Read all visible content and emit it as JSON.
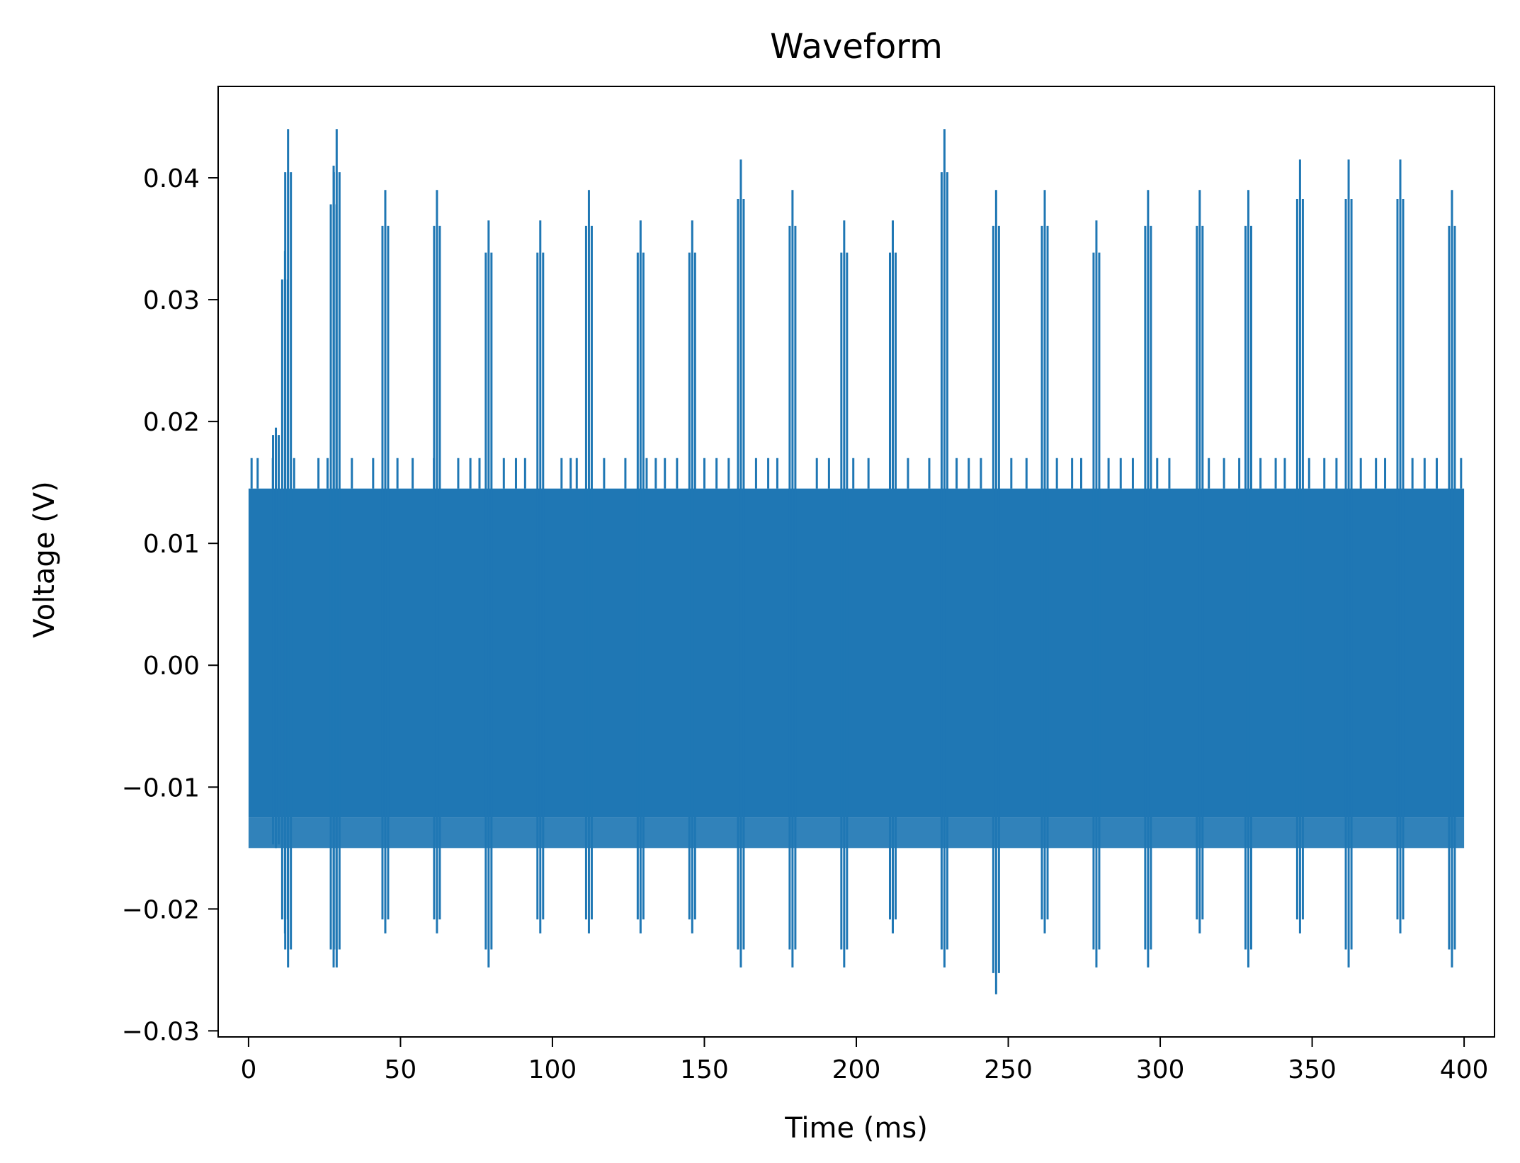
{
  "chart_data": {
    "type": "line",
    "title": "Waveform",
    "xlabel": "Time (ms)",
    "ylabel": "Voltage (V)",
    "xlim": [
      -10,
      410
    ],
    "ylim": [
      -0.0305,
      0.0475
    ],
    "x_ticks": [
      0,
      50,
      100,
      150,
      200,
      250,
      300,
      350,
      400
    ],
    "x_tick_labels": [
      "0",
      "50",
      "100",
      "150",
      "200",
      "250",
      "300",
      "350",
      "400"
    ],
    "y_ticks": [
      -0.03,
      -0.02,
      -0.01,
      0.0,
      0.01,
      0.02,
      0.03,
      0.04
    ],
    "y_tick_labels": [
      "−0.03",
      "−0.02",
      "−0.01",
      "0.00",
      "0.01",
      "0.02",
      "0.03",
      "0.04"
    ],
    "grid": false,
    "legend": "none",
    "series": [
      {
        "color": "#1f77b4",
        "baseline_envelope": {
          "x_range": [
            0,
            400
          ],
          "y_min": -0.0125,
          "y_max": 0.0145
        },
        "secondary_envelope": {
          "y_min": -0.015,
          "y_max": 0.017
        },
        "spikes": [
          {
            "x": 9,
            "y_max": 0.0195,
            "y_min": -0.015
          },
          {
            "x": 12,
            "y_max": 0.034,
            "y_min": -0.022
          },
          {
            "x": 13,
            "y_max": 0.044,
            "y_min": -0.0248
          },
          {
            "x": 28,
            "y_max": 0.041,
            "y_min": -0.0248
          },
          {
            "x": 29,
            "y_max": 0.044,
            "y_min": -0.0248
          },
          {
            "x": 45,
            "y_max": 0.039,
            "y_min": -0.022
          },
          {
            "x": 62,
            "y_max": 0.039,
            "y_min": -0.022
          },
          {
            "x": 79,
            "y_max": 0.0365,
            "y_min": -0.0248
          },
          {
            "x": 96,
            "y_max": 0.0365,
            "y_min": -0.022
          },
          {
            "x": 112,
            "y_max": 0.039,
            "y_min": -0.022
          },
          {
            "x": 129,
            "y_max": 0.0365,
            "y_min": -0.022
          },
          {
            "x": 146,
            "y_max": 0.0365,
            "y_min": -0.022
          },
          {
            "x": 162,
            "y_max": 0.0415,
            "y_min": -0.0248
          },
          {
            "x": 179,
            "y_max": 0.039,
            "y_min": -0.0248
          },
          {
            "x": 196,
            "y_max": 0.0365,
            "y_min": -0.0248
          },
          {
            "x": 212,
            "y_max": 0.0365,
            "y_min": -0.022
          },
          {
            "x": 229,
            "y_max": 0.044,
            "y_min": -0.0248
          },
          {
            "x": 246,
            "y_max": 0.039,
            "y_min": -0.027
          },
          {
            "x": 262,
            "y_max": 0.039,
            "y_min": -0.022
          },
          {
            "x": 279,
            "y_max": 0.0365,
            "y_min": -0.0248
          },
          {
            "x": 296,
            "y_max": 0.039,
            "y_min": -0.0248
          },
          {
            "x": 313,
            "y_max": 0.039,
            "y_min": -0.022
          },
          {
            "x": 329,
            "y_max": 0.039,
            "y_min": -0.0248
          },
          {
            "x": 346,
            "y_max": 0.0415,
            "y_min": -0.022
          },
          {
            "x": 362,
            "y_max": 0.0415,
            "y_min": -0.0248
          },
          {
            "x": 379,
            "y_max": 0.0415,
            "y_min": -0.022
          },
          {
            "x": 396,
            "y_max": 0.039,
            "y_min": -0.0248
          }
        ],
        "secondary_spike_x": [
          1,
          3,
          8,
          15,
          23,
          26,
          34,
          41,
          49,
          54,
          61,
          69,
          73,
          76,
          84,
          88,
          91,
          103,
          106,
          108,
          117,
          124,
          131,
          134,
          137,
          141,
          150,
          154,
          158,
          167,
          171,
          174,
          187,
          191,
          199,
          204,
          217,
          224,
          233,
          237,
          241,
          251,
          256,
          266,
          271,
          274,
          283,
          287,
          291,
          299,
          303,
          316,
          321,
          326,
          333,
          338,
          341,
          349,
          354,
          358,
          366,
          371,
          374,
          383,
          387,
          391,
          399
        ]
      }
    ]
  }
}
